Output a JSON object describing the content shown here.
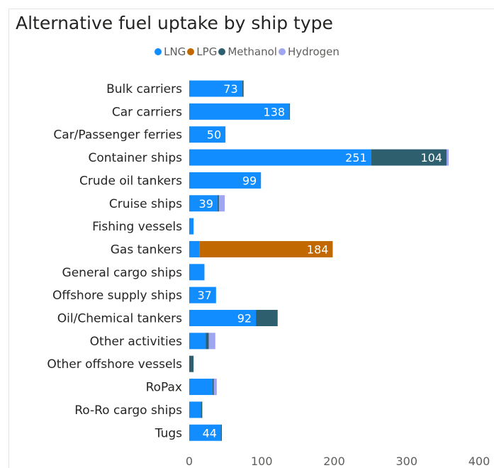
{
  "chart_data": {
    "type": "bar",
    "orientation": "horizontal",
    "stacked": true,
    "title": "Alternative fuel uptake by ship type",
    "legend_position": "top-center",
    "categories": [
      "Bulk carriers",
      "Car carriers",
      "Car/Passenger ferries",
      "Container ships",
      "Crude oil tankers",
      "Cruise ships",
      "Fishing vessels",
      "Gas tankers",
      "General cargo ships",
      "Offshore supply ships",
      "Oil/Chemical tankers",
      "Other activities",
      "Other offshore vessels",
      "RoPax",
      "Ro-Ro cargo ships",
      "Tugs"
    ],
    "series": [
      {
        "name": "LNG",
        "color": "#118DFF",
        "values": [
          73,
          138,
          50,
          251,
          99,
          39,
          6,
          14,
          21,
          37,
          92,
          23,
          0,
          32,
          16,
          44
        ]
      },
      {
        "name": "LPG",
        "color": "#C16900",
        "values": [
          0,
          0,
          0,
          0,
          0,
          0,
          0,
          184,
          0,
          0,
          0,
          0,
          0,
          0,
          0,
          0
        ]
      },
      {
        "name": "Methanol",
        "color": "#2D5F6E",
        "values": [
          2,
          1,
          0,
          104,
          0,
          2,
          0,
          0,
          0,
          0,
          30,
          4,
          6,
          2,
          2,
          1
        ]
      },
      {
        "name": "Hydrogen",
        "color": "#A0A5F2",
        "values": [
          0,
          0,
          0,
          3,
          0,
          8,
          0,
          0,
          0,
          0,
          0,
          9,
          0,
          4,
          0,
          0
        ]
      }
    ],
    "data_labels": [
      {
        "category": "Bulk carriers",
        "series": "LNG",
        "text": "73"
      },
      {
        "category": "Car carriers",
        "series": "LNG",
        "text": "138"
      },
      {
        "category": "Car/Passenger ferries",
        "series": "LNG",
        "text": "50"
      },
      {
        "category": "Container ships",
        "series": "LNG",
        "text": "251"
      },
      {
        "category": "Container ships",
        "series": "Methanol",
        "text": "104"
      },
      {
        "category": "Crude oil tankers",
        "series": "LNG",
        "text": "99"
      },
      {
        "category": "Cruise ships",
        "series": "LNG",
        "text": "39"
      },
      {
        "category": "Gas tankers",
        "series": "LPG",
        "text": "184"
      },
      {
        "category": "Offshore supply ships",
        "series": "LNG",
        "text": "37"
      },
      {
        "category": "Oil/Chemical tankers",
        "series": "LNG",
        "text": "92"
      },
      {
        "category": "Tugs",
        "series": "LNG",
        "text": "44"
      }
    ],
    "xlim": [
      0,
      400
    ],
    "xticks": [
      "0",
      "100",
      "200",
      "300",
      "400"
    ],
    "grid": false
  }
}
